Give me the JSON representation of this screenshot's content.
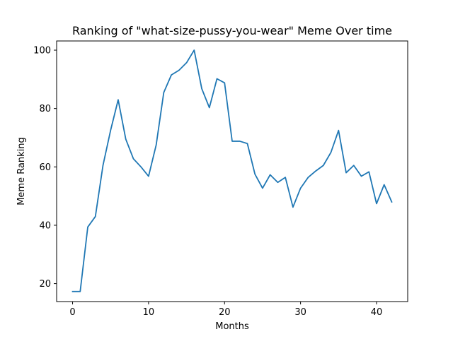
{
  "chart_data": {
    "type": "line",
    "title": "Ranking of \"what-size-pussy-you-wear\" Meme Over time",
    "xlabel": "Months",
    "ylabel": "Meme Ranking",
    "xlim": [
      -2.1,
      44.1
    ],
    "ylim": [
      13.85,
      103.15
    ],
    "xticks": [
      0,
      10,
      20,
      30,
      40
    ],
    "yticks": [
      20,
      40,
      60,
      80,
      100
    ],
    "grid": false,
    "line_color": "#1f77b4",
    "series": [
      {
        "x": [
          0,
          1,
          2,
          3,
          4,
          5,
          6,
          7,
          8,
          9,
          10,
          11,
          12,
          13,
          14,
          15,
          16,
          17,
          18,
          19,
          20,
          21,
          22,
          23,
          24,
          25,
          26,
          27,
          28,
          29,
          30,
          31,
          32,
          33,
          34,
          35,
          36,
          37,
          38,
          39,
          40,
          41,
          42
        ],
        "values": [
          17.3,
          17.3,
          39.4,
          43.0,
          60.5,
          72.5,
          83.0,
          69.5,
          62.8,
          60.0,
          56.8,
          67.5,
          85.5,
          91.5,
          93.1,
          95.7,
          100.0,
          86.8,
          80.3,
          90.2,
          88.8,
          68.8,
          68.8,
          68.0,
          57.5,
          52.7,
          57.3,
          54.7,
          56.4,
          46.2,
          52.7,
          56.4,
          58.6,
          60.5,
          65.0,
          72.5,
          58.0,
          60.5,
          56.8,
          58.3,
          47.4,
          53.9,
          48.0
        ]
      }
    ]
  }
}
